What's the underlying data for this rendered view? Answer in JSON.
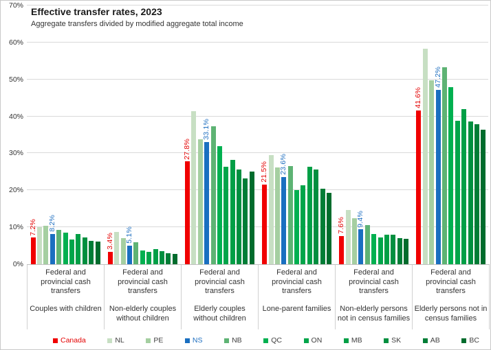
{
  "title": "Effective transfer rates, 2023",
  "subtitle": "Aggregate transfers divided by modified aggregate total income",
  "y_axis": {
    "tick_labels": [
      "0%",
      "10%",
      "20%",
      "30%",
      "40%",
      "50%",
      "60%",
      "70%"
    ],
    "tick_values": [
      0,
      10,
      20,
      30,
      40,
      50,
      60,
      70
    ]
  },
  "chart_data": {
    "type": "bar",
    "title": "Effective transfer rates, 2023",
    "subtitle": "Aggregate transfers divided by modified aggregate total income",
    "ylim": [
      0,
      70
    ],
    "grid": "horizontal",
    "legend_position": "bottom",
    "category_axis_level1": "Federal and provincial cash transfers",
    "categories": [
      "Couples with children",
      "Non-elderly couples without children",
      "Elderly couples without children",
      "Lone-parent families",
      "Non-elderly persons not in census families",
      "Elderly persons not in census families"
    ],
    "series": [
      {
        "name": "Canada",
        "color": "#f00000",
        "label_text_color": "#e30000",
        "values": [
          7.2,
          3.4,
          27.8,
          21.5,
          7.6,
          41.6
        ],
        "data_labels": [
          "7.2%",
          "3.4%",
          "27.8%",
          "21.5%",
          "7.6%",
          "41.6%"
        ]
      },
      {
        "name": "NL",
        "color": "#c7dfc3",
        "label_text_color": null,
        "values": [
          10.1,
          8.8,
          41.4,
          29.6,
          14.6,
          58.3
        ],
        "data_labels": null
      },
      {
        "name": "PE",
        "color": "#a5cfa1",
        "label_text_color": null,
        "values": [
          10.4,
          7.0,
          33.8,
          26.1,
          12.4,
          49.7
        ],
        "data_labels": null
      },
      {
        "name": "NS",
        "color": "#1a6fc0",
        "label_text_color": "#1f6fc0",
        "values": [
          8.2,
          5.1,
          33.1,
          23.6,
          9.4,
          47.2
        ],
        "data_labels": [
          "8.2%",
          "5.1%",
          "33.1%",
          "23.6%",
          "9.4%",
          "47.2%"
        ]
      },
      {
        "name": "NB",
        "color": "#5eb374",
        "label_text_color": null,
        "values": [
          9.2,
          5.9,
          37.4,
          26.5,
          10.5,
          53.2
        ],
        "data_labels": null
      },
      {
        "name": "QC",
        "color": "#00b050",
        "label_text_color": null,
        "values": [
          8.6,
          3.7,
          31.9,
          20.0,
          8.2,
          47.9
        ],
        "data_labels": null
      },
      {
        "name": "ON",
        "color": "#00a54a",
        "label_text_color": null,
        "values": [
          6.7,
          3.3,
          26.3,
          21.4,
          7.3,
          38.9
        ],
        "data_labels": null
      },
      {
        "name": "MB",
        "color": "#009f46",
        "label_text_color": null,
        "values": [
          8.1,
          4.0,
          28.2,
          26.3,
          8.0,
          42.0
        ],
        "data_labels": null
      },
      {
        "name": "SK",
        "color": "#008f3f",
        "label_text_color": null,
        "values": [
          7.3,
          3.5,
          25.7,
          25.6,
          8.0,
          38.6
        ],
        "data_labels": null
      },
      {
        "name": "AB",
        "color": "#007d36",
        "label_text_color": null,
        "values": [
          6.4,
          3.0,
          23.2,
          20.5,
          7.0,
          37.8
        ],
        "data_labels": null
      },
      {
        "name": "BC",
        "color": "#006c2d",
        "label_text_color": null,
        "values": [
          6.1,
          2.7,
          25.0,
          19.4,
          6.8,
          36.4
        ],
        "data_labels": null
      }
    ]
  },
  "legend": {
    "default_text_color": "#404040",
    "items": [
      {
        "label": "Canada",
        "color": "#f00000",
        "text_color": "#e30000"
      },
      {
        "label": "NL",
        "color": "#c7dfc3",
        "text_color": "#404040"
      },
      {
        "label": "PE",
        "color": "#a5cfa1",
        "text_color": "#404040"
      },
      {
        "label": "NS",
        "color": "#1a6fc0",
        "text_color": "#1f6fc0"
      },
      {
        "label": "NB",
        "color": "#5eb374",
        "text_color": "#404040"
      },
      {
        "label": "QC",
        "color": "#00b050",
        "text_color": "#404040"
      },
      {
        "label": "ON",
        "color": "#00a54a",
        "text_color": "#404040"
      },
      {
        "label": "MB",
        "color": "#009f46",
        "text_color": "#404040"
      },
      {
        "label": "SK",
        "color": "#008f3f",
        "text_color": "#404040"
      },
      {
        "label": "AB",
        "color": "#007d36",
        "text_color": "#404040"
      },
      {
        "label": "BC",
        "color": "#006c2d",
        "text_color": "#404040"
      }
    ]
  },
  "colors": {
    "gridline": "#d9d9d9",
    "axis_line": "#bfbfbf",
    "separator": "#d0d0d0",
    "frame_border": "#c9c9c9",
    "text": "#333333"
  }
}
